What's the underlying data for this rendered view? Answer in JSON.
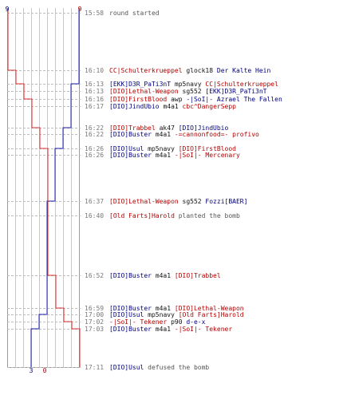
{
  "colors": {
    "blue_team": "#1f1fb0",
    "red_team": "#e03030",
    "grid": "#c8c8c8",
    "grid_dash": "#bdbdbd",
    "time_text": "#777777"
  },
  "score": {
    "blue_start": "9",
    "red_start": "9",
    "blue_end": "3",
    "red_end": "0"
  },
  "chart_data": {
    "type": "line",
    "title": "",
    "xlabel": "",
    "ylabel": "",
    "xlim": [
      0,
      9
    ],
    "series": [
      {
        "team": "blue",
        "color": "#1f1fb0",
        "alive_steps": [
          {
            "time": "15:58",
            "alive": 9
          },
          {
            "time": "16:13",
            "alive": 8
          },
          {
            "time": "16:16",
            "alive": 8
          },
          {
            "time": "16:22",
            "alive": 7
          },
          {
            "time": "16:22",
            "alive": 7
          },
          {
            "time": "16:26",
            "alive": 6
          },
          {
            "time": "16:37",
            "alive": 5
          },
          {
            "time": "16:52",
            "alive": 5
          },
          {
            "time": "17:00",
            "alive": 4
          },
          {
            "time": "17:03",
            "alive": 3
          },
          {
            "time": "17:11",
            "alive": 3
          }
        ]
      },
      {
        "team": "red",
        "color": "#e03030",
        "alive_steps": [
          {
            "time": "15:58",
            "alive": 9
          },
          {
            "time": "16:10",
            "alive": 8
          },
          {
            "time": "16:13",
            "alive": 7
          },
          {
            "time": "16:16",
            "alive": 6
          },
          {
            "time": "16:22",
            "alive": 5
          },
          {
            "time": "16:26",
            "alive": 4
          },
          {
            "time": "16:52",
            "alive": 3
          },
          {
            "time": "16:59",
            "alive": 2
          },
          {
            "time": "17:02",
            "alive": 1
          },
          {
            "time": "17:03",
            "alive": 0
          },
          {
            "time": "17:11",
            "alive": 0
          }
        ]
      }
    ]
  },
  "events": [
    {
      "time": "15:58",
      "parts": [
        {
          "text": "round started",
          "team": "gray"
        }
      ]
    },
    {
      "time": "16:10",
      "parts": [
        {
          "text": "CC|Schulterkrueppel",
          "team": "red"
        },
        {
          "text": " glock18 ",
          "team": "black"
        },
        {
          "text": "Der Kalte Hein",
          "team": "blue"
        }
      ]
    },
    {
      "time": "16:13",
      "parts": [
        {
          "text": "[EKK]D3R_PaTi3nT",
          "team": "blue"
        },
        {
          "text": " mp5navy ",
          "team": "black"
        },
        {
          "text": "CC|Schulterkrueppel",
          "team": "red"
        }
      ]
    },
    {
      "time": "16:13",
      "parts": [
        {
          "text": "[DIO]Lethal-Weapon",
          "team": "red"
        },
        {
          "text": " sg552 ",
          "team": "black"
        },
        {
          "text": "[EKK]D3R_PaTi3nT",
          "team": "blue"
        }
      ]
    },
    {
      "time": "16:16",
      "parts": [
        {
          "text": "[DIO]FirstBlood",
          "team": "red"
        },
        {
          "text": " awp ",
          "team": "black"
        },
        {
          "text": "-|SoI|- Azrael The Fallen",
          "team": "blue"
        }
      ]
    },
    {
      "time": "16:17",
      "parts": [
        {
          "text": "[DIO]JindUbio",
          "team": "blue"
        },
        {
          "text": " m4a1 ",
          "team": "black"
        },
        {
          "text": "cbc^DangerSepp",
          "team": "red"
        }
      ]
    },
    {
      "time": "16:22",
      "parts": [
        {
          "text": "[DIO]Trabbel",
          "team": "red"
        },
        {
          "text": " ak47 ",
          "team": "black"
        },
        {
          "text": "[DIO]JindUbio",
          "team": "blue"
        }
      ]
    },
    {
      "time": "16:22",
      "parts": [
        {
          "text": "[DIO]Buster",
          "team": "blue"
        },
        {
          "text": " m4a1 ",
          "team": "black"
        },
        {
          "text": "-=cannonfood=- profivo",
          "team": "red"
        }
      ]
    },
    {
      "time": "16:26",
      "parts": [
        {
          "text": "[DIO]Usul",
          "team": "blue"
        },
        {
          "text": " mp5navy ",
          "team": "black"
        },
        {
          "text": "[DIO]FirstBlood",
          "team": "red"
        }
      ]
    },
    {
      "time": "16:26",
      "parts": [
        {
          "text": "[DIO]Buster",
          "team": "blue"
        },
        {
          "text": " m4a1 ",
          "team": "black"
        },
        {
          "text": "-|SoI|- Mercenary",
          "team": "red"
        }
      ]
    },
    {
      "time": "16:37",
      "parts": [
        {
          "text": "[DIO]Lethal-Weapon",
          "team": "red"
        },
        {
          "text": " sg552 ",
          "team": "black"
        },
        {
          "text": "Fozzi[BAER]",
          "team": "blue"
        }
      ]
    },
    {
      "time": "16:40",
      "parts": [
        {
          "text": "[Old Farts]Harold",
          "team": "red"
        },
        {
          "text": " planted the bomb",
          "team": "gray"
        }
      ]
    },
    {
      "time": "16:52",
      "parts": [
        {
          "text": "[DIO]Buster",
          "team": "blue"
        },
        {
          "text": " m4a1 ",
          "team": "black"
        },
        {
          "text": "[DIO]Trabbel",
          "team": "red"
        }
      ]
    },
    {
      "time": "16:59",
      "parts": [
        {
          "text": "[DIO]Buster",
          "team": "blue"
        },
        {
          "text": " m4a1 ",
          "team": "black"
        },
        {
          "text": "[DIO]Lethal-Weapon",
          "team": "red"
        }
      ]
    },
    {
      "time": "17:00",
      "parts": [
        {
          "text": "[DIO]Usul",
          "team": "blue"
        },
        {
          "text": " mp5navy ",
          "team": "black"
        },
        {
          "text": "[Old Farts]Harold",
          "team": "red"
        }
      ]
    },
    {
      "time": "17:02",
      "parts": [
        {
          "text": "-|SoI|- Tekener",
          "team": "red"
        },
        {
          "text": " p90 ",
          "team": "black"
        },
        {
          "text": "d-e-x",
          "team": "blue"
        }
      ]
    },
    {
      "time": "17:03",
      "parts": [
        {
          "text": "[DIO]Buster",
          "team": "blue"
        },
        {
          "text": " m4a1 ",
          "team": "black"
        },
        {
          "text": "-|SoI|- Tekener",
          "team": "red"
        }
      ]
    },
    {
      "time": "17:11",
      "parts": [
        {
          "text": "[DIO]Usul",
          "team": "blue"
        },
        {
          "text": " defused the bomb",
          "team": "gray"
        }
      ]
    }
  ]
}
